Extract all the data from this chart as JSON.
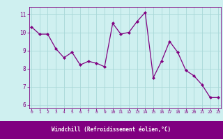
{
  "x": [
    0,
    1,
    2,
    3,
    4,
    5,
    6,
    7,
    8,
    9,
    10,
    11,
    12,
    13,
    14,
    15,
    16,
    17,
    18,
    19,
    20,
    21,
    22,
    23
  ],
  "y": [
    10.3,
    9.9,
    9.9,
    9.1,
    8.6,
    8.9,
    8.2,
    8.4,
    8.3,
    8.1,
    10.5,
    9.9,
    10.0,
    10.6,
    11.1,
    7.5,
    8.4,
    9.5,
    8.9,
    7.9,
    7.6,
    7.1,
    6.4,
    6.4
  ],
  "line_color": "#800080",
  "marker": "D",
  "marker_size": 2,
  "bg_color": "#cff0f0",
  "grid_color": "#a8d8d8",
  "xlabel": "Windchill (Refroidissement éolien,°C)",
  "xlabel_color": "#ffffff",
  "xlabel_bg": "#800080",
  "ylim": [
    5.8,
    11.4
  ],
  "yticks": [
    6,
    7,
    8,
    9,
    10,
    11
  ],
  "xticks": [
    0,
    1,
    2,
    3,
    4,
    5,
    6,
    7,
    8,
    9,
    10,
    11,
    12,
    13,
    14,
    15,
    16,
    17,
    18,
    19,
    20,
    21,
    22,
    23
  ],
  "tick_color": "#800080",
  "spine_color": "#800080"
}
